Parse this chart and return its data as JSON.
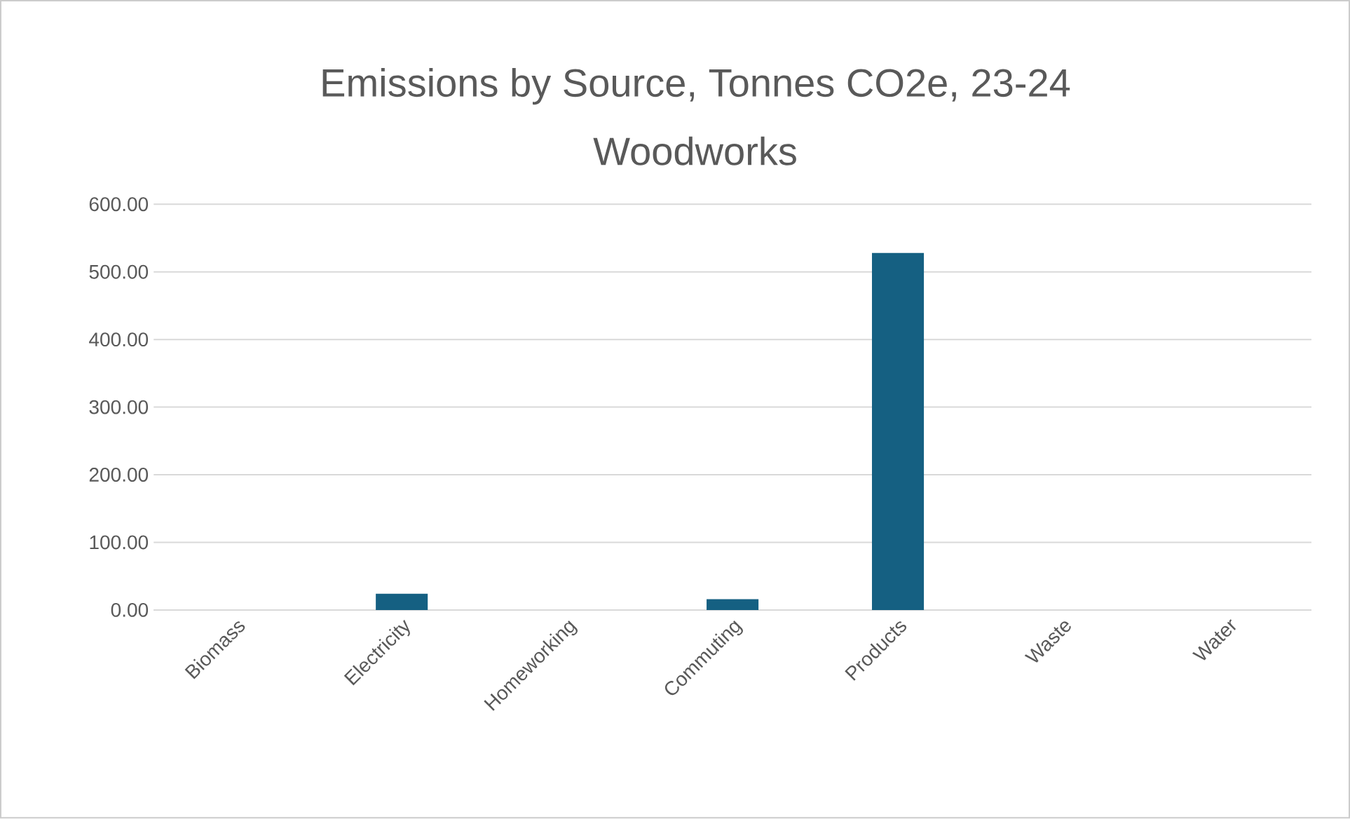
{
  "chart_data": {
    "type": "bar",
    "title": "Emissions by Source, Tonnes CO2e, 23-24",
    "subtitle": "Woodworks",
    "categories": [
      "Biomass",
      "Electricity",
      "Homeworking",
      "Commuting",
      "Products",
      "Waste",
      "Water"
    ],
    "values": [
      0,
      24,
      0,
      16,
      528,
      0,
      0
    ],
    "color": "#156082",
    "ylim": [
      0,
      600
    ],
    "yticks": [
      {
        "value": 0,
        "label": "0.00"
      },
      {
        "value": 100,
        "label": "100.00"
      },
      {
        "value": 200,
        "label": "200.00"
      },
      {
        "value": 300,
        "label": "300.00"
      },
      {
        "value": 400,
        "label": "400.00"
      },
      {
        "value": 500,
        "label": "500.00"
      },
      {
        "value": 600,
        "label": "600.00"
      }
    ],
    "grid": "y"
  }
}
